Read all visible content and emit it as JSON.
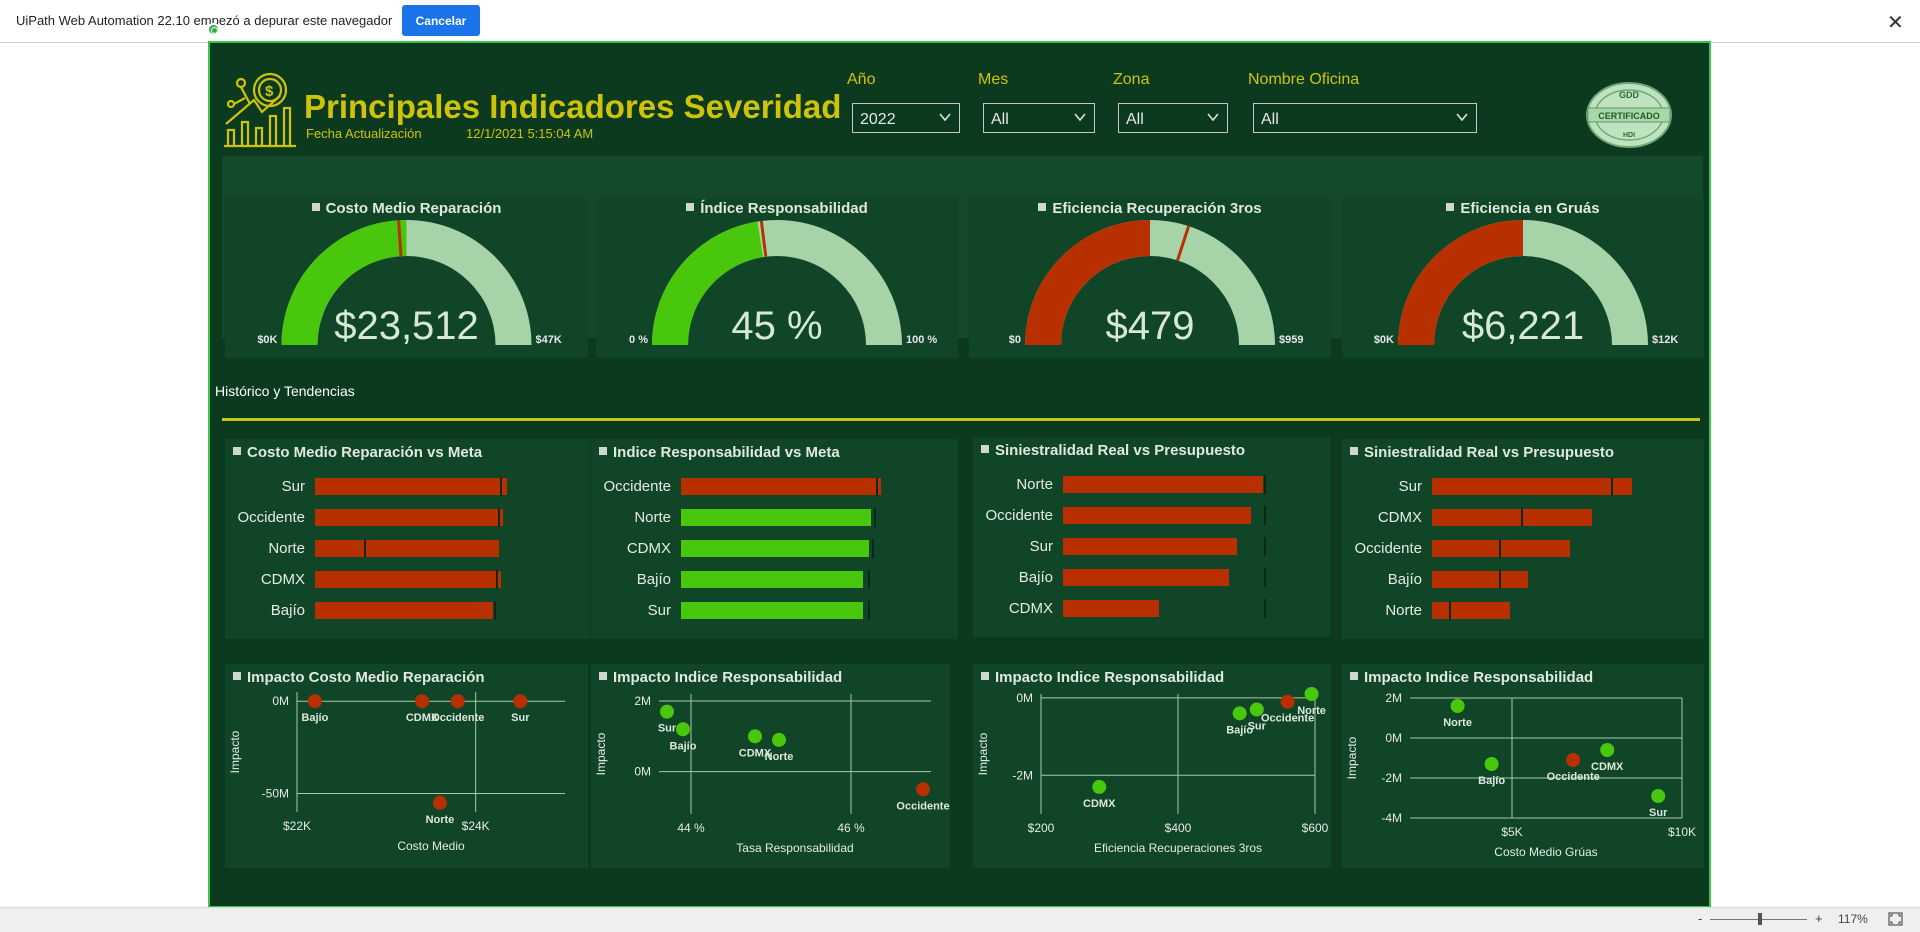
{
  "infobar": {
    "message": "UiPath Web Automation 22.10 empezó a depurar este navegador",
    "cancel_label": "Cancelar"
  },
  "header": {
    "title": "Principales Indicadores Severidad",
    "update_label": "Fecha Actualización",
    "update_value": "12/1/2021 5:15:04 AM",
    "badge_top": "GDD",
    "badge_text": "CERTIFICADO",
    "badge_bottom": "HDI"
  },
  "filters": [
    {
      "label": "Año",
      "value": "2022"
    },
    {
      "label": "Mes",
      "value": "All"
    },
    {
      "label": "Zona",
      "value": "All"
    },
    {
      "label": "Nombre Oficina",
      "value": "All"
    }
  ],
  "colors": {
    "accent": "#cfc20a",
    "green": "#49c70c",
    "red": "#b83000",
    "light": "#a6d4a8",
    "bg": "#0b3a1e",
    "panel": "#114528"
  },
  "gauges": [
    {
      "title": "Costo Medio Reparación",
      "value": "$23,512",
      "min": "$0K",
      "max": "$47K",
      "fill_fraction": 0.5,
      "target_fraction": 0.48,
      "fill_color": "green"
    },
    {
      "title": "Índice Responsabilidad",
      "value": "45 %",
      "min": "0 %",
      "max": "100 %",
      "fill_fraction": 0.45,
      "target_fraction": 0.46,
      "fill_color": "green"
    },
    {
      "title": "Eficiencia Recuperación 3ros",
      "value": "$479",
      "min": "$0",
      "max": "$959",
      "fill_fraction": 0.5,
      "target_fraction": 0.6,
      "fill_color": "red"
    },
    {
      "title": "Eficiencia en Gruás",
      "value": "$6,221",
      "min": "$0K",
      "max": "$12K",
      "fill_fraction": 0.5,
      "target_fraction": null,
      "fill_color": "red"
    }
  ],
  "section_label": "Histórico y Tendencias",
  "bar_panels": [
    {
      "title": "Costo Medio Reparación vs Meta",
      "rows": [
        {
          "label": "Sur",
          "value": 0.96,
          "target": 0.93,
          "color": "red"
        },
        {
          "label": "Occidente",
          "value": 0.94,
          "target": 0.92,
          "color": "red"
        },
        {
          "label": "Norte",
          "value": 0.92,
          "target": 0.25,
          "color": "red"
        },
        {
          "label": "CDMX",
          "value": 0.93,
          "target": 0.91,
          "color": "red"
        },
        {
          "label": "Bajío",
          "value": 0.89,
          "target": 0.9,
          "color": "red"
        }
      ]
    },
    {
      "title": "Indice Responsabilidad vs Meta",
      "rows": [
        {
          "label": "Occidente",
          "value": 1.0,
          "target": 0.98,
          "color": "red"
        },
        {
          "label": "Norte",
          "value": 0.95,
          "target": 0.97,
          "color": "green"
        },
        {
          "label": "CDMX",
          "value": 0.94,
          "target": 0.96,
          "color": "green"
        },
        {
          "label": "Bajío",
          "value": 0.91,
          "target": 0.94,
          "color": "green"
        },
        {
          "label": "Sur",
          "value": 0.91,
          "target": 0.94,
          "color": "green"
        }
      ]
    },
    {
      "title": "Siniestralidad Real vs Presupuesto",
      "rows": [
        {
          "label": "Norte",
          "value": 1.0,
          "target": 1.01,
          "color": "red"
        },
        {
          "label": "Occidente",
          "value": 0.94,
          "target": 1.01,
          "color": "red"
        },
        {
          "label": "Sur",
          "value": 0.87,
          "target": 1.01,
          "color": "red"
        },
        {
          "label": "Bajío",
          "value": 0.83,
          "target": 1.01,
          "color": "red"
        },
        {
          "label": "CDMX",
          "value": 0.48,
          "target": 1.01,
          "color": "red"
        }
      ]
    },
    {
      "title": "Siniestralidad Real vs Presupuesto",
      "rows": [
        {
          "label": "Sur",
          "value": 1.0,
          "target": 0.9,
          "color": "red"
        },
        {
          "label": "CDMX",
          "value": 0.8,
          "target": 0.45,
          "color": "red"
        },
        {
          "label": "Occidente",
          "value": 0.69,
          "target": 0.34,
          "color": "red"
        },
        {
          "label": "Bajío",
          "value": 0.48,
          "target": 0.34,
          "color": "red"
        },
        {
          "label": "Norte",
          "value": 0.39,
          "target": 0.09,
          "color": "red"
        }
      ]
    }
  ],
  "chart_data": [
    {
      "type": "scatter",
      "title": "Impacto Costo Medio Reparación",
      "xlabel": "Costo Medio",
      "ylabel": "Impacto",
      "x_ticks": [
        "$22K",
        "$24K"
      ],
      "y_ticks": [
        "0M",
        "-50M"
      ],
      "points": [
        {
          "label": "Bajío",
          "x": 22.2,
          "y": 0,
          "color": "red"
        },
        {
          "label": "CDMX",
          "x": 23.4,
          "y": 0,
          "color": "red"
        },
        {
          "label": "Occidente",
          "x": 23.8,
          "y": 0,
          "color": "red"
        },
        {
          "label": "Sur",
          "x": 24.5,
          "y": 0,
          "color": "red"
        },
        {
          "label": "Norte",
          "x": 23.6,
          "y": -55,
          "color": "red"
        }
      ]
    },
    {
      "type": "scatter",
      "title": "Impacto Indice Responsabilidad",
      "xlabel": "Tasa Responsabilidad",
      "ylabel": "Impacto",
      "x_ticks": [
        "44 %",
        "46 %"
      ],
      "y_ticks": [
        "2M",
        "0M"
      ],
      "points": [
        {
          "label": "Sur",
          "x": 43.7,
          "y": 1.7,
          "color": "green"
        },
        {
          "label": "Bajío",
          "x": 43.9,
          "y": 1.2,
          "color": "green"
        },
        {
          "label": "CDMX",
          "x": 44.8,
          "y": 1.0,
          "color": "green"
        },
        {
          "label": "Norte",
          "x": 45.1,
          "y": 0.9,
          "color": "green"
        },
        {
          "label": "Occidente",
          "x": 46.9,
          "y": -0.5,
          "color": "red"
        }
      ]
    },
    {
      "type": "scatter",
      "title": "Impacto Indice Responsabilidad",
      "xlabel": "Eficiencia Recuperaciones 3ros",
      "ylabel": "Impacto",
      "x_ticks": [
        "$200",
        "$400",
        "$600"
      ],
      "y_ticks": [
        "0M",
        "-2M"
      ],
      "points": [
        {
          "label": "CDMX",
          "x": 285,
          "y": -2.3,
          "color": "green"
        },
        {
          "label": "Bajío",
          "x": 490,
          "y": -0.4,
          "color": "green"
        },
        {
          "label": "Sur",
          "x": 515,
          "y": -0.3,
          "color": "green"
        },
        {
          "label": "Occidente",
          "x": 560,
          "y": -0.1,
          "color": "red"
        },
        {
          "label": "Norte",
          "x": 595,
          "y": 0.1,
          "color": "green"
        }
      ]
    },
    {
      "type": "scatter",
      "title": "Impacto Indice Responsabilidad",
      "xlabel": "Costo Medio Grúas",
      "ylabel": "Impacto",
      "x_ticks": [
        "$5K",
        "$10K"
      ],
      "y_ticks": [
        "2M",
        "0M",
        "-2M",
        "-4M"
      ],
      "points": [
        {
          "label": "Norte",
          "x": 3.4,
          "y": 1.6,
          "color": "green"
        },
        {
          "label": "Bajío",
          "x": 4.4,
          "y": -1.3,
          "color": "green"
        },
        {
          "label": "Occidente",
          "x": 6.8,
          "y": -1.1,
          "color": "red"
        },
        {
          "label": "CDMX",
          "x": 7.8,
          "y": -0.6,
          "color": "green"
        },
        {
          "label": "Sur",
          "x": 9.3,
          "y": -2.9,
          "color": "green"
        }
      ]
    }
  ],
  "status": {
    "zoom": "117%",
    "zoom_minus": "-",
    "zoom_plus": "+"
  }
}
